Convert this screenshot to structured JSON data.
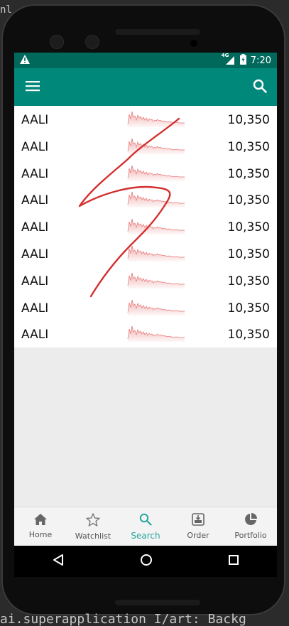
{
  "ide": {
    "top_fragment": "nl",
    "bottom_fragment": "ai.superapplication I/art: Backg"
  },
  "status_bar": {
    "network": "4G",
    "time": "7:20"
  },
  "toolbar": {
    "menu_icon": "hamburger-menu-icon",
    "search_icon": "search-icon"
  },
  "list": {
    "items": [
      {
        "symbol": "AALI",
        "price": "10,350"
      },
      {
        "symbol": "AALI",
        "price": "10,350"
      },
      {
        "symbol": "AALI",
        "price": "10,350"
      },
      {
        "symbol": "AALI",
        "price": "10,350"
      },
      {
        "symbol": "AALI",
        "price": "10,350"
      },
      {
        "symbol": "AALI",
        "price": "10,350"
      },
      {
        "symbol": "AALI",
        "price": "10,350"
      },
      {
        "symbol": "AALI",
        "price": "10,350"
      },
      {
        "symbol": "AALI",
        "price": "10,350"
      }
    ]
  },
  "bottom_nav": {
    "items": [
      {
        "label": "Home",
        "icon": "home-icon"
      },
      {
        "label": "Watchlist",
        "icon": "star-icon"
      },
      {
        "label": "Search",
        "icon": "search-icon"
      },
      {
        "label": "Order",
        "icon": "order-icon"
      },
      {
        "label": "Portfolio",
        "icon": "pie-chart-icon"
      }
    ],
    "active": "Search"
  },
  "colors": {
    "status_bar": "#00695c",
    "app_bar": "#00897b",
    "accent": "#26a69a",
    "sparkline": "#e57373",
    "annotation": "#d32f2f"
  }
}
